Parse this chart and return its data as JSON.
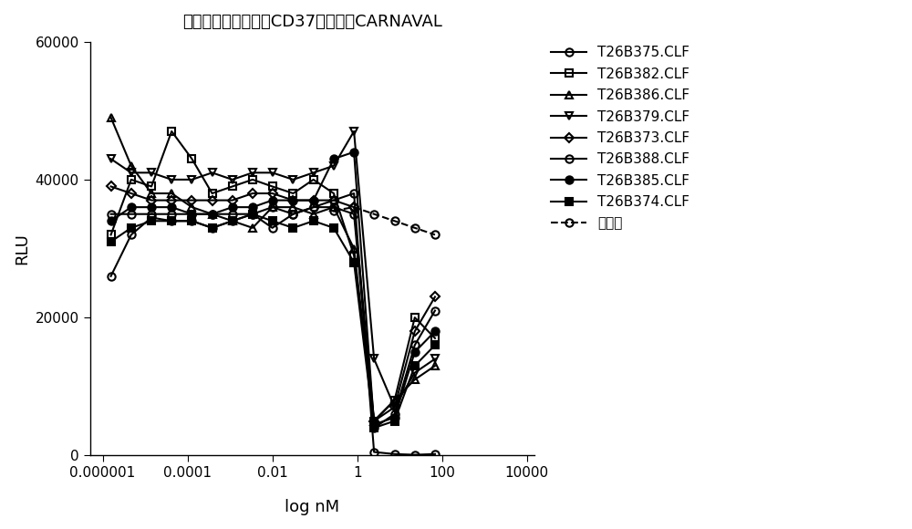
{
  "title": "具有低岩藻糖基化的CD37靶点对抗CARNAVAL",
  "xlabel": "log nM",
  "ylabel": "RLU",
  "ylim": [
    0,
    60000
  ],
  "yticks": [
    0,
    20000,
    40000,
    60000
  ],
  "background_color": "#ffffff",
  "series": [
    {
      "label": "T26B375.CLF",
      "marker": "o",
      "fillstyle": "none",
      "linestyle": "-",
      "color": "#000000",
      "linewidth": 1.5,
      "markersize": 6,
      "x": [
        1.56e-06,
        4.69e-06,
        1.41e-05,
        4.22e-05,
        0.000127,
        0.00038,
        0.00114,
        0.00342,
        0.01,
        0.031,
        0.093,
        0.28,
        0.84,
        2.5,
        7.6,
        22.8,
        68.4
      ],
      "y": [
        26000,
        32000,
        34500,
        34000,
        34000,
        33000,
        34000,
        35000,
        33000,
        35000,
        36000,
        37000,
        38000,
        500,
        200,
        100,
        200
      ]
    },
    {
      "label": "T26B382.CLF",
      "marker": "s",
      "fillstyle": "none",
      "linestyle": "-",
      "color": "#000000",
      "linewidth": 1.5,
      "markersize": 6,
      "x": [
        1.56e-06,
        4.69e-06,
        1.41e-05,
        4.22e-05,
        0.000127,
        0.00038,
        0.00114,
        0.00342,
        0.01,
        0.031,
        0.093,
        0.28,
        0.84,
        2.5,
        7.6,
        22.8,
        68.4
      ],
      "y": [
        32000,
        40000,
        39000,
        47000,
        43000,
        38000,
        39000,
        40000,
        39000,
        38000,
        40000,
        38000,
        29000,
        5000,
        8000,
        20000,
        17000
      ]
    },
    {
      "label": "T26B386.CLF",
      "marker": "^",
      "fillstyle": "none",
      "linestyle": "-",
      "color": "#000000",
      "linewidth": 1.5,
      "markersize": 6,
      "x": [
        1.56e-06,
        4.69e-06,
        1.41e-05,
        4.22e-05,
        0.000127,
        0.00038,
        0.00114,
        0.00342,
        0.01,
        0.031,
        0.093,
        0.28,
        0.84,
        2.5,
        7.6,
        22.8,
        68.4
      ],
      "y": [
        49000,
        42000,
        38000,
        38000,
        36000,
        35000,
        34000,
        33000,
        36000,
        36000,
        35000,
        36000,
        30000,
        5000,
        8000,
        11000,
        13000
      ]
    },
    {
      "label": "T26B379.CLF",
      "marker": "v",
      "fillstyle": "none",
      "linestyle": "-",
      "color": "#000000",
      "linewidth": 1.5,
      "markersize": 6,
      "x": [
        1.56e-06,
        4.69e-06,
        1.41e-05,
        4.22e-05,
        0.000127,
        0.00038,
        0.00114,
        0.00342,
        0.01,
        0.031,
        0.093,
        0.28,
        0.84,
        2.5,
        7.6,
        22.8,
        68.4
      ],
      "y": [
        43000,
        41000,
        41000,
        40000,
        40000,
        41000,
        40000,
        41000,
        41000,
        40000,
        41000,
        42000,
        47000,
        14000,
        7000,
        12000,
        14000
      ]
    },
    {
      "label": "T26B373.CLF",
      "marker": "D",
      "fillstyle": "none",
      "linestyle": "-",
      "color": "#000000",
      "linewidth": 1.5,
      "markersize": 5,
      "x": [
        1.56e-06,
        4.69e-06,
        1.41e-05,
        4.22e-05,
        0.000127,
        0.00038,
        0.00114,
        0.00342,
        0.01,
        0.031,
        0.093,
        0.28,
        0.84,
        2.5,
        7.6,
        22.8,
        68.4
      ],
      "y": [
        39000,
        38000,
        37000,
        37000,
        37000,
        37000,
        37000,
        38000,
        38000,
        37000,
        37000,
        37000,
        36000,
        5000,
        7000,
        18000,
        23000
      ]
    },
    {
      "label": "T26B388.CLF",
      "marker": "o",
      "fillstyle": "none",
      "linestyle": "-",
      "color": "#000000",
      "linewidth": 1.5,
      "markersize": 6,
      "x": [
        1.56e-06,
        4.69e-06,
        1.41e-05,
        4.22e-05,
        0.000127,
        0.00038,
        0.00114,
        0.00342,
        0.01,
        0.031,
        0.093,
        0.28,
        0.84,
        2.5,
        7.6,
        22.8,
        68.4
      ],
      "y": [
        35000,
        35000,
        35000,
        35000,
        35000,
        35000,
        35000,
        35000,
        36000,
        35000,
        36000,
        36000,
        35000,
        4000,
        6000,
        16000,
        21000
      ]
    },
    {
      "label": "T26B385.CLF",
      "marker": "o",
      "fillstyle": "full",
      "linestyle": "-",
      "color": "#000000",
      "linewidth": 1.5,
      "markersize": 6,
      "x": [
        1.56e-06,
        4.69e-06,
        1.41e-05,
        4.22e-05,
        0.000127,
        0.00038,
        0.00114,
        0.00342,
        0.01,
        0.031,
        0.093,
        0.28,
        0.84,
        2.5,
        7.6,
        22.8,
        68.4
      ],
      "y": [
        34000,
        36000,
        36000,
        36000,
        35000,
        35000,
        36000,
        36000,
        37000,
        37000,
        37000,
        43000,
        44000,
        4500,
        5500,
        15000,
        18000
      ]
    },
    {
      "label": "T26B374.CLF",
      "marker": "s",
      "fillstyle": "full",
      "linestyle": "-",
      "color": "#000000",
      "linewidth": 1.5,
      "markersize": 6,
      "x": [
        1.56e-06,
        4.69e-06,
        1.41e-05,
        4.22e-05,
        0.000127,
        0.00038,
        0.00114,
        0.00342,
        0.01,
        0.031,
        0.093,
        0.28,
        0.84,
        2.5,
        7.6,
        22.8,
        68.4
      ],
      "y": [
        31000,
        33000,
        34000,
        34000,
        34000,
        33000,
        34000,
        35000,
        34000,
        33000,
        34000,
        33000,
        28000,
        4000,
        5000,
        13000,
        16000
      ]
    },
    {
      "label": "同种型",
      "marker": "o",
      "fillstyle": "none",
      "linestyle": "--",
      "color": "#000000",
      "linewidth": 1.5,
      "markersize": 6,
      "x": [
        0.28,
        0.84,
        2.5,
        7.6,
        22.8,
        68.4
      ],
      "y": [
        35500,
        36000,
        35000,
        34000,
        33000,
        32000
      ]
    }
  ]
}
